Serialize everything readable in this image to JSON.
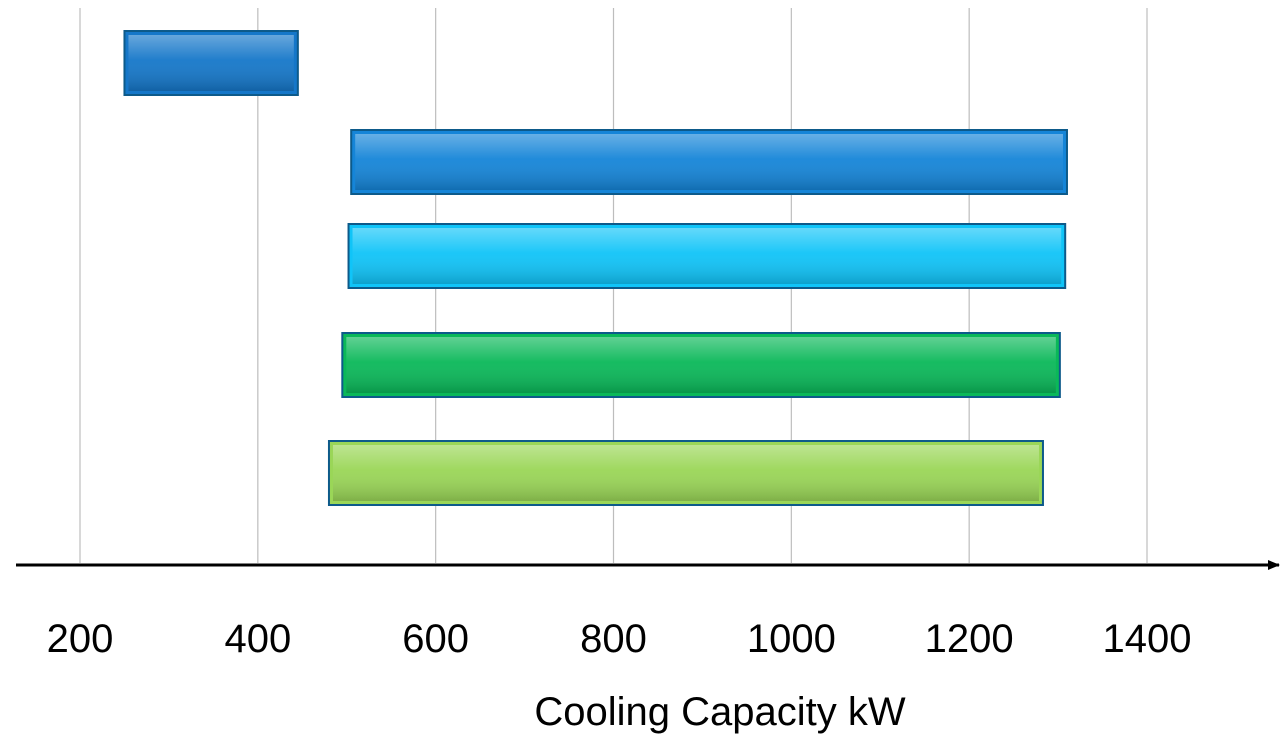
{
  "chart_data": {
    "type": "bar",
    "orientation": "horizontal-range",
    "title": "",
    "xlabel": "Cooling Capacity kW",
    "ylabel": "",
    "x_ticks": [
      "200",
      "400",
      "600",
      "800",
      "1000",
      "1200",
      "1400"
    ],
    "x_tick_values": [
      200,
      400,
      600,
      800,
      1000,
      1200,
      1400
    ],
    "xlim": [
      135,
      1560
    ],
    "grid": "vertical",
    "legend": "none",
    "bars": [
      {
        "start": 250,
        "end": 445,
        "color": "#1577c9"
      },
      {
        "start": 505,
        "end": 1310,
        "color": "#1585d8"
      },
      {
        "start": 502,
        "end": 1308,
        "color": "#10c4f8"
      },
      {
        "start": 495,
        "end": 1302,
        "color": "#0ab859"
      },
      {
        "start": 480,
        "end": 1283,
        "color": "#9ad657"
      }
    ]
  }
}
